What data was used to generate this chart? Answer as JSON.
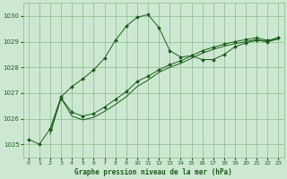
{
  "xlabel": "Graphe pression niveau de la mer (hPa)",
  "background_color": "#cde8d2",
  "grid_color": "#88bb88",
  "line_color": "#1a5c1a",
  "ylim": [
    1024.5,
    1030.5
  ],
  "xlim": [
    -0.5,
    23.5
  ],
  "yticks": [
    1025,
    1026,
    1027,
    1028,
    1029,
    1030
  ],
  "xticks": [
    0,
    1,
    2,
    3,
    4,
    5,
    6,
    7,
    8,
    9,
    10,
    11,
    12,
    13,
    14,
    15,
    16,
    17,
    18,
    19,
    20,
    21,
    22,
    23
  ],
  "line1_x": [
    0,
    1,
    2,
    3,
    4,
    5,
    6,
    7,
    8,
    9,
    10,
    11,
    12,
    13,
    14,
    15,
    16,
    17,
    18,
    19,
    20,
    21,
    22,
    23
  ],
  "line1_y": [
    1025.2,
    1025.0,
    1025.6,
    1026.85,
    1027.25,
    1027.55,
    1027.9,
    1028.35,
    1029.05,
    1029.6,
    1029.95,
    1030.05,
    1029.55,
    1028.65,
    1028.4,
    1028.45,
    1028.3,
    1028.3,
    1028.5,
    1028.8,
    1028.95,
    1029.05,
    1029.0,
    1029.15
  ],
  "line2_x": [
    2,
    3,
    4,
    5,
    6,
    7,
    8,
    9,
    10,
    11,
    12,
    13,
    14,
    15,
    16,
    17,
    18,
    19,
    20,
    21,
    22,
    23
  ],
  "line2_y": [
    1025.55,
    1026.8,
    1026.25,
    1026.1,
    1026.2,
    1026.45,
    1026.75,
    1027.05,
    1027.45,
    1027.65,
    1027.9,
    1028.1,
    1028.25,
    1028.45,
    1028.65,
    1028.78,
    1028.9,
    1029.0,
    1029.08,
    1029.15,
    1029.05,
    1029.15
  ],
  "line3_x": [
    2,
    3,
    4,
    5,
    6,
    7,
    8,
    9,
    10,
    11,
    12,
    13,
    14,
    15,
    16,
    17,
    18,
    19,
    20,
    21,
    22,
    23
  ],
  "line3_y": [
    1025.4,
    1026.8,
    1026.1,
    1025.95,
    1026.05,
    1026.28,
    1026.55,
    1026.85,
    1027.25,
    1027.5,
    1027.8,
    1028.0,
    1028.15,
    1028.35,
    1028.55,
    1028.7,
    1028.82,
    1028.92,
    1029.0,
    1029.08,
    1029.0,
    1029.1
  ]
}
